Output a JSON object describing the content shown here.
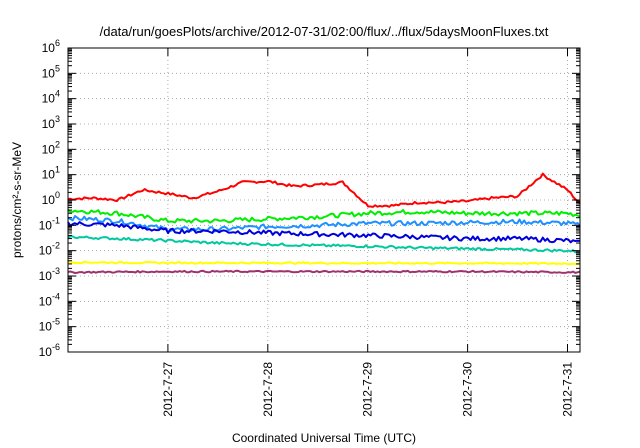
{
  "chart_data": {
    "type": "line",
    "title": "/data/run/goesPlots/archive/2012-07-31/02:00/flux/../flux/5daysMoonFluxes.txt",
    "xlabel": "Coordinated Universal Time (UTC)",
    "ylabel": "protons/cm²-s-sr-MeV",
    "yscale": "log",
    "ylim_exp": [
      -6,
      6
    ],
    "y_ticks": [
      {
        "base": "10",
        "exp": "-6"
      },
      {
        "base": "10",
        "exp": "-5"
      },
      {
        "base": "10",
        "exp": "-4"
      },
      {
        "base": "10",
        "exp": "-3"
      },
      {
        "base": "10",
        "exp": "-2"
      },
      {
        "base": "10",
        "exp": "-1"
      },
      {
        "base": "10",
        "exp": "0"
      },
      {
        "base": "10",
        "exp": "1"
      },
      {
        "base": "10",
        "exp": "2"
      },
      {
        "base": "10",
        "exp": "3"
      },
      {
        "base": "10",
        "exp": "4"
      },
      {
        "base": "10",
        "exp": "5"
      },
      {
        "base": "10",
        "exp": "6"
      }
    ],
    "x_ticks": [
      "2012-7-27",
      "2012-7-28",
      "2012-7-29",
      "2012-7-30",
      "2012-7-31"
    ],
    "grid": true,
    "series": [
      {
        "color": "#ff0000",
        "x": [
          "2012-7-26 00:00",
          "2012-7-26 06:00",
          "2012-7-26 12:00",
          "2012-7-26 18:00",
          "2012-7-27 00:00",
          "2012-7-27 06:00",
          "2012-7-27 12:00",
          "2012-7-27 18:00",
          "2012-7-28 00:00",
          "2012-7-28 06:00",
          "2012-7-28 12:00",
          "2012-7-28 18:00",
          "2012-7-29 00:00",
          "2012-7-29 06:00",
          "2012-7-29 12:00",
          "2012-7-29 18:00",
          "2012-7-30 00:00",
          "2012-7-30 06:00",
          "2012-7-30 12:00",
          "2012-7-30 18:00",
          "2012-7-31 00:00",
          "2012-7-31 03:00"
        ],
        "y": [
          1.1,
          1.2,
          1.0,
          2.5,
          1.8,
          1.2,
          2.2,
          5.0,
          5.5,
          3.5,
          4.0,
          5.0,
          0.6,
          0.6,
          0.8,
          0.8,
          0.9,
          1.2,
          1.4,
          10.0,
          2.5,
          0.7
        ]
      },
      {
        "color": "#00ee00",
        "x": [
          "2012-7-26 00:00",
          "2012-7-26 12:00",
          "2012-7-27 00:00",
          "2012-7-27 12:00",
          "2012-7-28 00:00",
          "2012-7-28 12:00",
          "2012-7-29 00:00",
          "2012-7-29 12:00",
          "2012-7-30 00:00",
          "2012-7-30 12:00",
          "2012-7-31 00:00",
          "2012-7-31 03:00"
        ],
        "y": [
          0.4,
          0.3,
          0.15,
          0.15,
          0.18,
          0.22,
          0.3,
          0.35,
          0.3,
          0.3,
          0.3,
          0.25
        ]
      },
      {
        "color": "#1e90ff",
        "x": [
          "2012-7-26 00:00",
          "2012-7-26 12:00",
          "2012-7-27 00:00",
          "2012-7-27 12:00",
          "2012-7-28 00:00",
          "2012-7-28 12:00",
          "2012-7-29 00:00",
          "2012-7-29 12:00",
          "2012-7-30 00:00",
          "2012-7-30 12:00",
          "2012-7-31 00:00",
          "2012-7-31 03:00"
        ],
        "y": [
          0.2,
          0.15,
          0.07,
          0.07,
          0.09,
          0.1,
          0.12,
          0.12,
          0.13,
          0.14,
          0.12,
          0.1
        ]
      },
      {
        "color": "#0000dd",
        "x": [
          "2012-7-26 00:00",
          "2012-7-26 12:00",
          "2012-7-27 00:00",
          "2012-7-27 12:00",
          "2012-7-28 00:00",
          "2012-7-28 12:00",
          "2012-7-29 00:00",
          "2012-7-29 12:00",
          "2012-7-30 00:00",
          "2012-7-30 12:00",
          "2012-7-31 00:00",
          "2012-7-31 03:00"
        ],
        "y": [
          0.12,
          0.1,
          0.06,
          0.06,
          0.05,
          0.045,
          0.04,
          0.035,
          0.03,
          0.03,
          0.025,
          0.02
        ]
      },
      {
        "color": "#00c8a0",
        "x": [
          "2012-7-26 00:00",
          "2012-7-26 12:00",
          "2012-7-27 00:00",
          "2012-7-27 12:00",
          "2012-7-28 00:00",
          "2012-7-28 12:00",
          "2012-7-29 00:00",
          "2012-7-29 12:00",
          "2012-7-30 00:00",
          "2012-7-30 12:00",
          "2012-7-31 00:00",
          "2012-7-31 03:00"
        ],
        "y": [
          0.035,
          0.03,
          0.025,
          0.02,
          0.018,
          0.016,
          0.015,
          0.013,
          0.012,
          0.011,
          0.01,
          0.009
        ]
      },
      {
        "color": "#ffff00",
        "x": [
          "2012-7-26 00:00",
          "2012-7-27 00:00",
          "2012-7-28 00:00",
          "2012-7-29 00:00",
          "2012-7-30 00:00",
          "2012-7-31 00:00",
          "2012-7-31 03:00"
        ],
        "y": [
          0.0035,
          0.0033,
          0.0033,
          0.0032,
          0.0032,
          0.0031,
          0.0031
        ]
      },
      {
        "color": "#a0306e",
        "x": [
          "2012-7-26 00:00",
          "2012-7-27 00:00",
          "2012-7-28 00:00",
          "2012-7-29 00:00",
          "2012-7-30 00:00",
          "2012-7-31 00:00",
          "2012-7-31 03:00"
        ],
        "y": [
          0.0014,
          0.0015,
          0.0015,
          0.0015,
          0.0015,
          0.0014,
          0.0014
        ]
      }
    ]
  }
}
